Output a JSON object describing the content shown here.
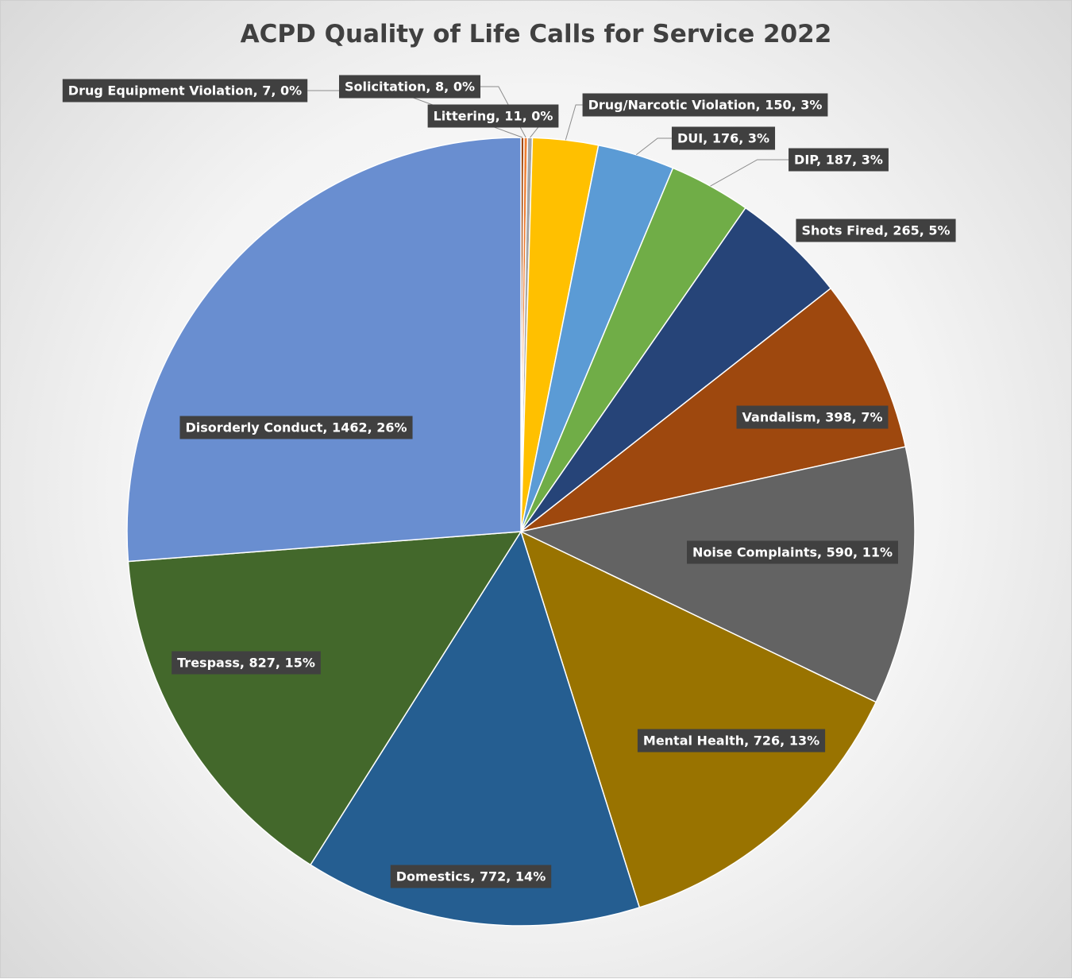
{
  "chart_data": {
    "type": "pie",
    "title": "ACPD Quality of Life Calls for Service 2022",
    "slices": [
      {
        "name": "Drug Equipment Violation",
        "value": 7,
        "label": "Drug Equipment Violation, 7, 0%",
        "color": "#9e480e"
      },
      {
        "name": "Solicitation",
        "value": 8,
        "label": "Solicitation, 8, 0%",
        "color": "#ed7d31"
      },
      {
        "name": "Littering",
        "value": 11,
        "label": "Littering, 11, 0%",
        "color": "#a5a5a5"
      },
      {
        "name": "Drug/Narcotic Violation",
        "value": 150,
        "label": "Drug/Narcotic Violation, 150, 3%",
        "color": "#ffc000"
      },
      {
        "name": "DUI",
        "value": 176,
        "label": "DUI, 176, 3%",
        "color": "#5b9bd5"
      },
      {
        "name": "DIP",
        "value": 187,
        "label": "DIP, 187, 3%",
        "color": "#70ad47"
      },
      {
        "name": "Shots Fired",
        "value": 265,
        "label": "Shots Fired, 265, 5%",
        "color": "#264478"
      },
      {
        "name": "Vandalism",
        "value": 398,
        "label": "Vandalism, 398, 7%",
        "color": "#9e480e"
      },
      {
        "name": "Noise Complaints",
        "value": 590,
        "label": "Noise Complaints, 590, 11%",
        "color": "#636363"
      },
      {
        "name": "Mental Health",
        "value": 726,
        "label": "Mental Health, 726, 13%",
        "color": "#997300"
      },
      {
        "name": "Domestics",
        "value": 772,
        "label": "Domestics, 772, 14%",
        "color": "#255e91"
      },
      {
        "name": "Trespass",
        "value": 827,
        "label": "Trespass, 827, 15%",
        "color": "#43682b"
      },
      {
        "name": "Disorderly Conduct",
        "value": 1462,
        "label": "Disorderly Conduct, 1462, 26%",
        "color": "#698ed0"
      }
    ]
  }
}
